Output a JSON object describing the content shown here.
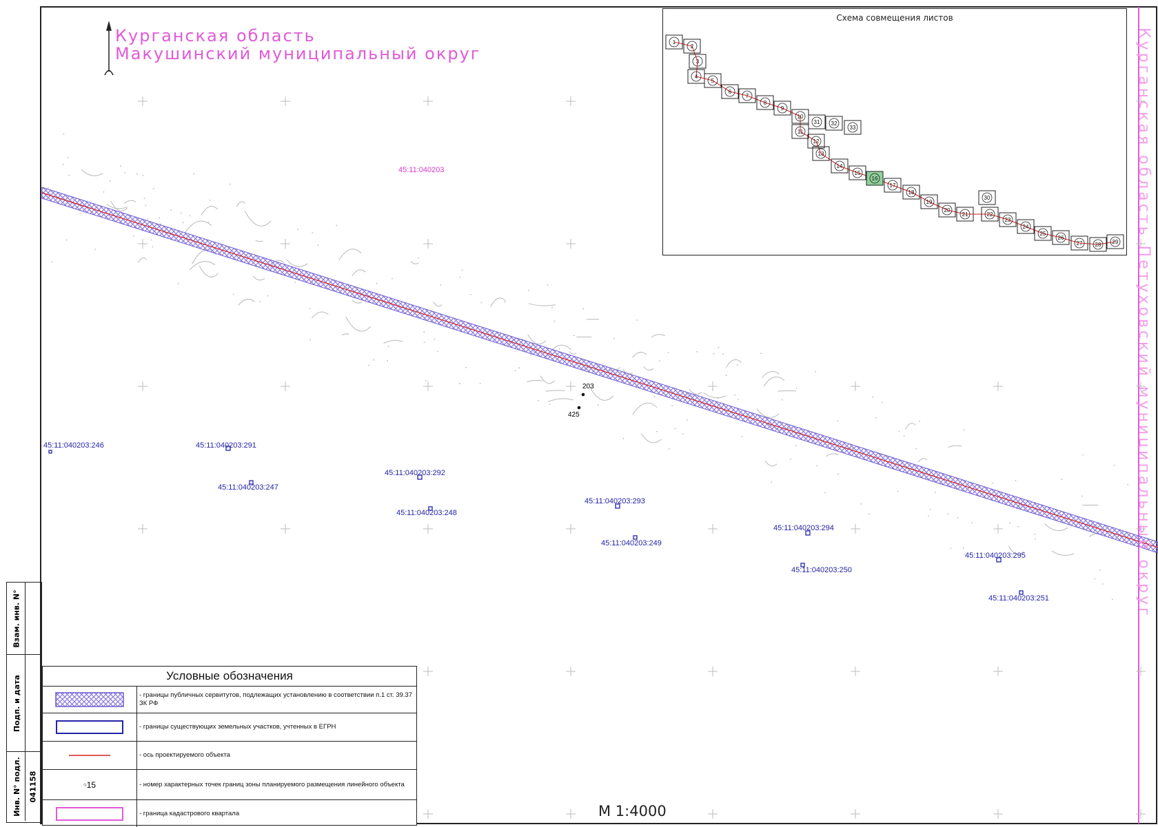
{
  "map": {
    "region_line1": "Курганская область",
    "region_line2": "Макушинский муниципальный округ",
    "neighbor_region": "Курганская область Петуховский муниципальный округ",
    "quarter_number": "45:11:040203",
    "scale": "М 1:4000",
    "colors": {
      "servitude": "#8a7ae0",
      "axis": "#d52020",
      "parcel": "#2323a8",
      "quarter": "#d63ad0"
    },
    "parcels": [
      "45:11:040203:246",
      "45:11:040203:291",
      "45:11:040203:247",
      "45:11:040203:292",
      "45:11:040203:248",
      "45:11:040203:293",
      "45:11:040203:249",
      "45:11:040203:294",
      "45:11:040203:250",
      "45:11:040203:295",
      "45:11:040203:251"
    ],
    "points": [
      "203",
      "425"
    ]
  },
  "inset": {
    "title": "Схема совмещения листов",
    "sheets": [
      "1",
      "2",
      "3",
      "4",
      "5",
      "6",
      "7",
      "8",
      "9",
      "10",
      "11",
      "12",
      "13",
      "14",
      "15",
      "16",
      "17",
      "18",
      "19",
      "20",
      "21",
      "22",
      "23",
      "24",
      "25",
      "26",
      "27",
      "28",
      "29",
      "30",
      "31",
      "32",
      "33"
    ],
    "current_sheet": "16"
  },
  "legend": {
    "title": "Условные обозначения",
    "items": [
      {
        "symbol": "hatch-icon",
        "text": "- границы публичных сервитутов, подлежащих установлению в соответствии п.1 ст. 39.37 ЗК РФ"
      },
      {
        "symbol": "blue-rect-icon",
        "text": "- границы существующих земельных участков, учтенных в ЕГРН"
      },
      {
        "symbol": "red-line-icon",
        "text": "- ось проектируемого объекта"
      },
      {
        "symbol": "point-icon",
        "text": "- номер характерных точек границ зоны планируемого размещения линейного объекта",
        "sample": "15"
      },
      {
        "symbol": "magenta-rect-icon",
        "text": "- граница кадастрового квартала"
      }
    ]
  },
  "stamp": {
    "field1": "Взам. инв. N°",
    "field2": "Подп. и дата",
    "field3": "Инв. N° подл.",
    "inv_number": "041158"
  }
}
